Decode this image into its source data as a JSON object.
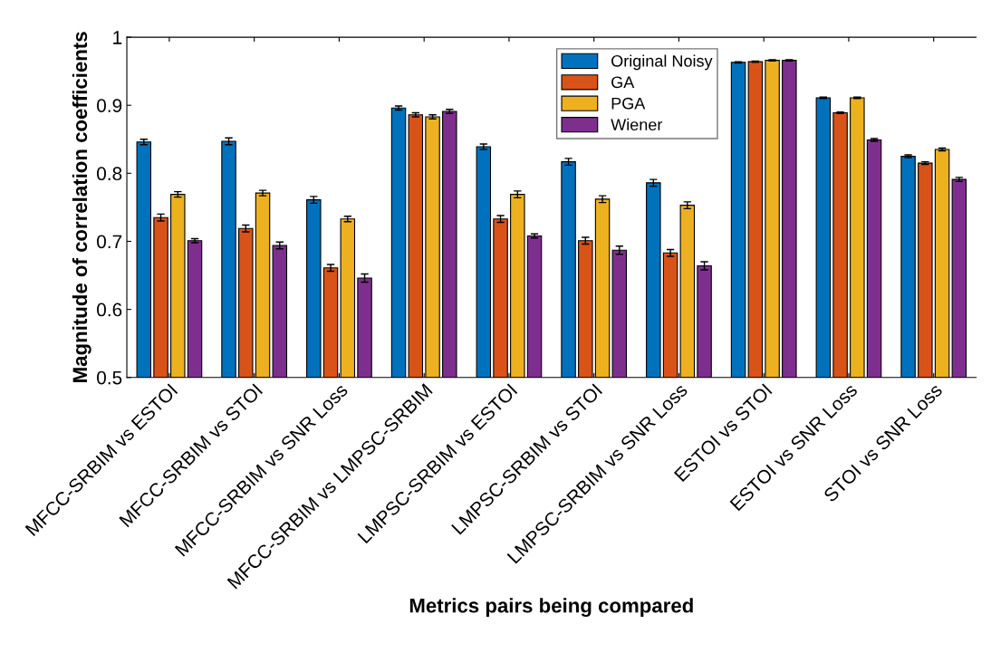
{
  "chart_data": {
    "type": "bar",
    "xlabel": "Metrics pairs being compared",
    "ylabel": "Magnitude of correlation coefficients",
    "categories": [
      "MFCC-SRBIM vs ESTOI",
      "MFCC-SRBIM vs STOI",
      "MFCC-SRBIM vs SNR Loss",
      "MFCC-SRBIM vs LMPSC-SRBIM",
      "LMPSC-SRBIM vs ESTOI",
      "LMPSC-SRBIM vs STOI",
      "LMPSC-SRBIM vs SNR Loss",
      "ESTOI vs STOI",
      "ESTOI vs SNR Loss",
      "STOI vs SNR Loss"
    ],
    "series": [
      {
        "name": "Original Noisy",
        "color": "#0072bd",
        "values": [
          0.846,
          0.847,
          0.761,
          0.896,
          0.839,
          0.817,
          0.786,
          0.963,
          0.911,
          0.825
        ],
        "errors": [
          0.004,
          0.005,
          0.005,
          0.003,
          0.004,
          0.005,
          0.005,
          0.001,
          0.001,
          0.002
        ]
      },
      {
        "name": "GA",
        "color": "#d95319",
        "values": [
          0.735,
          0.719,
          0.661,
          0.886,
          0.733,
          0.701,
          0.683,
          0.964,
          0.889,
          0.815
        ],
        "errors": [
          0.005,
          0.005,
          0.005,
          0.003,
          0.005,
          0.005,
          0.005,
          0.001,
          0.001,
          0.002
        ]
      },
      {
        "name": "PGA",
        "color": "#edb120",
        "values": [
          0.769,
          0.771,
          0.733,
          0.883,
          0.769,
          0.762,
          0.753,
          0.966,
          0.911,
          0.835
        ],
        "errors": [
          0.004,
          0.004,
          0.004,
          0.003,
          0.005,
          0.005,
          0.005,
          0.001,
          0.001,
          0.002
        ]
      },
      {
        "name": "Wiener",
        "color": "#7e2f8e",
        "values": [
          0.701,
          0.694,
          0.646,
          0.891,
          0.708,
          0.687,
          0.664,
          0.966,
          0.849,
          0.791
        ],
        "errors": [
          0.003,
          0.005,
          0.006,
          0.003,
          0.003,
          0.006,
          0.006,
          0.001,
          0.002,
          0.003
        ]
      }
    ],
    "ylim": [
      0.5,
      1
    ],
    "yticks": [
      0.5,
      0.6,
      0.7,
      0.8,
      0.9,
      1
    ],
    "grid": false,
    "legend": "top right"
  }
}
